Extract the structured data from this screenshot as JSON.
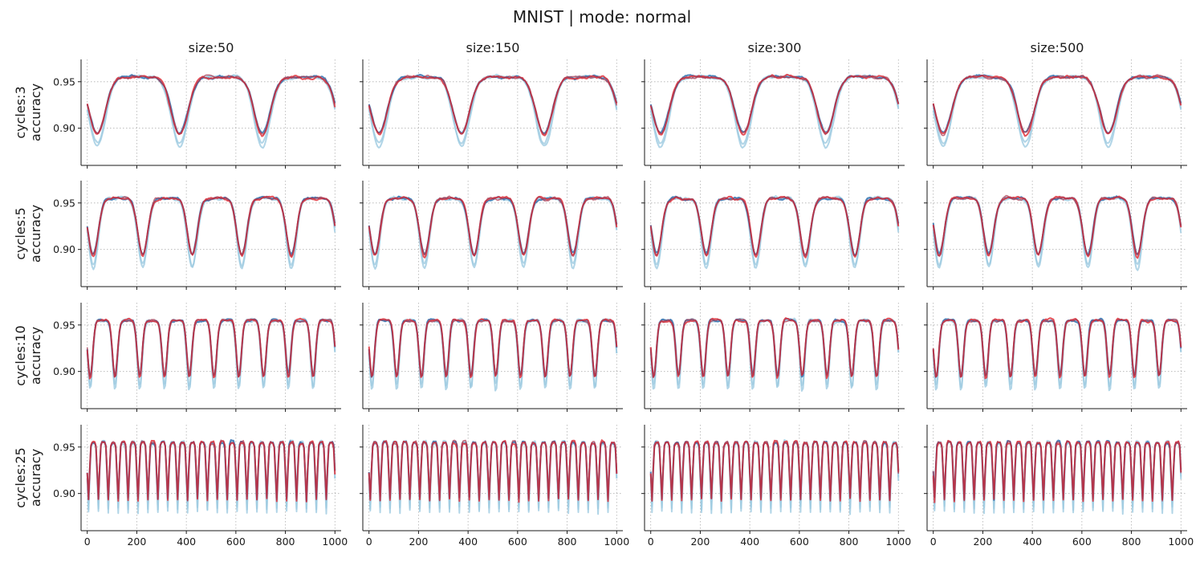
{
  "title": "MNIST | mode: normal",
  "chart_data": {
    "type": "line",
    "grid": true,
    "columns": [
      "size:50",
      "size:150",
      "size:300",
      "size:500"
    ],
    "rows": [
      {
        "cycles_label": "cycles:3",
        "ylabel": "accuracy",
        "cycles": 3
      },
      {
        "cycles_label": "cycles:5",
        "ylabel": "accuracy",
        "cycles": 5
      },
      {
        "cycles_label": "cycles:10",
        "ylabel": "accuracy",
        "cycles": 10
      },
      {
        "cycles_label": "cycles:25",
        "ylabel": "accuracy",
        "cycles": 25
      }
    ],
    "xlim": [
      -25,
      1025
    ],
    "ylim": [
      0.86,
      0.974
    ],
    "xticks": [
      0,
      200,
      400,
      600,
      800,
      1000
    ],
    "yticks": [
      0.9,
      0.95
    ],
    "ytick_labels": [
      "0.90",
      "0.95"
    ],
    "series_colors": {
      "light_blue": "#9ecae1",
      "blue": "#3a78b4",
      "red": "#e0323c",
      "overlap": "#a8324a"
    },
    "approx_curve": {
      "x_range": [
        0,
        1000
      ],
      "plateau_accuracy": 0.955,
      "dip_minimum_red": 0.893,
      "dip_minimum_light_blue": 0.88
    }
  }
}
